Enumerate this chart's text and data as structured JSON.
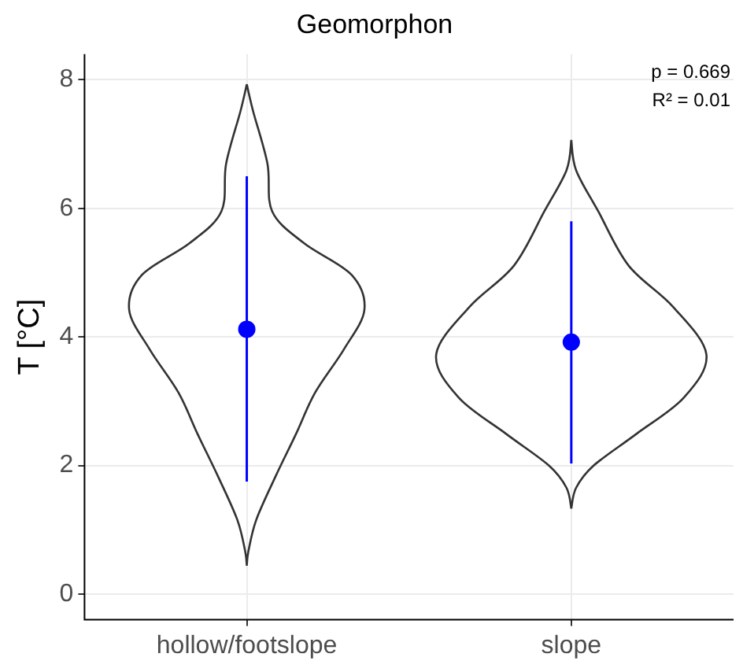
{
  "chart_data": {
    "type": "scatter",
    "title": "Geomorphon",
    "ylabel": "T [°C]",
    "categories": [
      "hollow/footslope",
      "slope"
    ],
    "values": [
      4.12,
      3.92
    ],
    "errors": [
      [
        1.75,
        6.5
      ],
      [
        2.03,
        5.8
      ]
    ],
    "color": "#0000ff",
    "marker": "circle",
    "ylim": [
      -0.4,
      8.4
    ],
    "yticks": [
      0,
      2,
      4,
      6,
      8
    ],
    "grid": true,
    "legend": false,
    "annotations": [
      "p = 0.669",
      "R² = 0.01"
    ]
  }
}
